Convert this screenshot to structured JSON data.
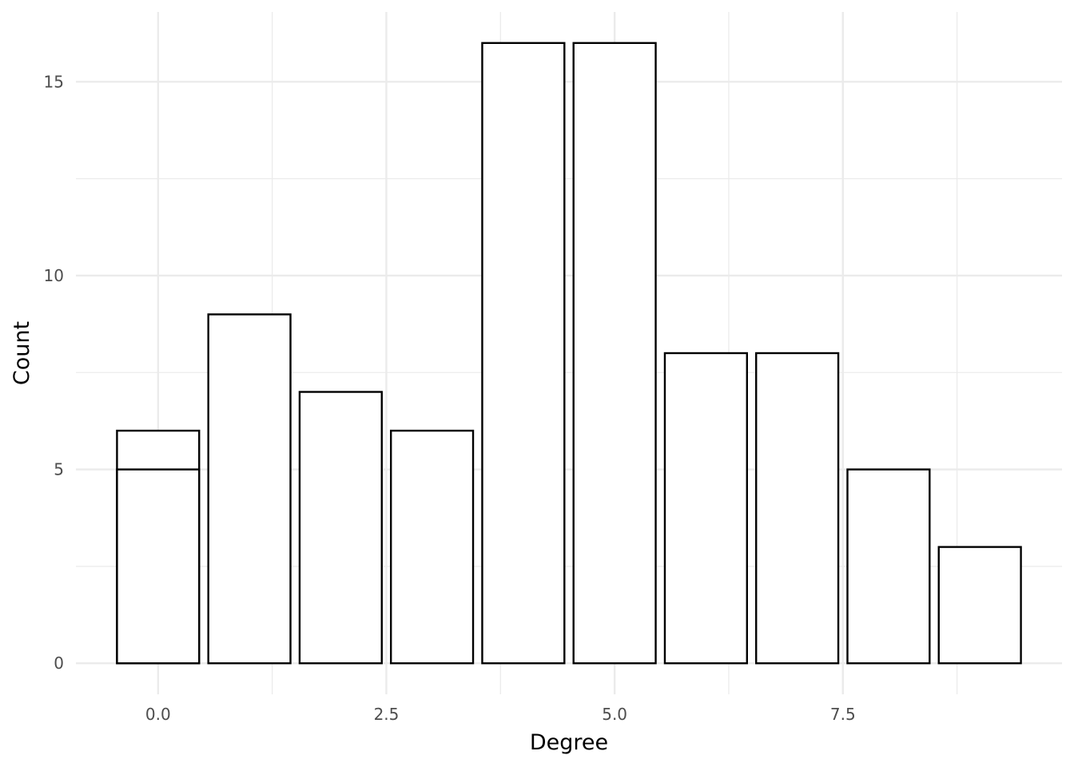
{
  "chart_data": {
    "type": "bar",
    "xlabel": "Degree",
    "ylabel": "Count",
    "x": [
      0,
      1,
      2,
      3,
      4,
      5,
      6,
      7,
      8,
      9
    ],
    "series": [
      {
        "values": [
          6,
          9,
          7,
          6,
          16,
          16,
          8,
          8,
          5,
          3
        ]
      },
      {
        "values": [
          5,
          null,
          null,
          null,
          null,
          null,
          null,
          null,
          null,
          null
        ]
      }
    ],
    "xlim": [
      -0.9,
      9.9
    ],
    "ylim": [
      -0.8,
      16.8
    ],
    "x_ticks": [
      0.0,
      2.5,
      5.0,
      7.5
    ],
    "x_tick_labels": [
      "0.0",
      "2.5",
      "5.0",
      "7.5"
    ],
    "y_ticks": [
      0,
      5,
      10,
      15
    ],
    "y_tick_labels": [
      "0",
      "5",
      "10",
      "15"
    ],
    "x_minor_ticks": [
      1.25,
      3.75,
      6.25,
      8.75
    ],
    "y_minor_ticks": [
      2.5,
      7.5,
      12.5
    ],
    "bar_width": 0.9,
    "grid": true,
    "legend": "none",
    "colors": {
      "bar_fill": "#ffffff",
      "bar_stroke": "#000000",
      "grid": "#ebebeb",
      "tick_text": "#4d4d4d"
    }
  }
}
